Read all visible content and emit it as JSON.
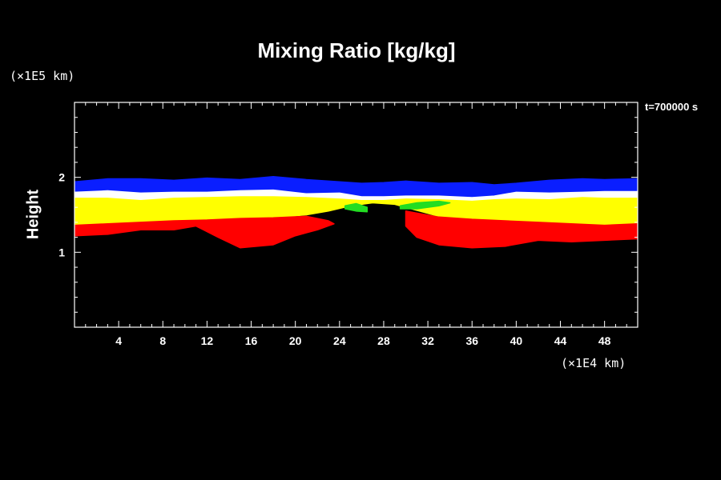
{
  "chart_data": {
    "type": "heatmap",
    "title": "Mixing Ratio [kg/kg]",
    "ylabel": "Height",
    "xlabel": "",
    "x_unit": "(×1E4 km)",
    "y_unit": "(×1E5 km)",
    "time_label": "t=700000 s",
    "xlim": [
      0,
      51
    ],
    "ylim": [
      0,
      3
    ],
    "x_ticks": [
      4,
      8,
      12,
      16,
      20,
      24,
      28,
      32,
      36,
      40,
      44,
      48
    ],
    "y_ticks": [
      1,
      2
    ],
    "colors": {
      "background": "#000000",
      "frame": "#ffffff",
      "blue": "#0a1eff",
      "white": "#ffffff",
      "yellow": "#ffff00",
      "red": "#ff0000",
      "green": "#22dd22",
      "cyan": "#00ffff"
    },
    "bands": [
      {
        "name": "",
        "color": "#0a1eff",
        "upper": [
          [
            0,
            1.94
          ],
          [
            3,
            1.98
          ],
          [
            6,
            1.98
          ],
          [
            9,
            1.96
          ],
          [
            12,
            1.99
          ],
          [
            15,
            1.97
          ],
          [
            18,
            2.01
          ],
          [
            21,
            1.97
          ],
          [
            24,
            1.94
          ],
          [
            26,
            1.92
          ],
          [
            28,
            1.93
          ],
          [
            30,
            1.95
          ],
          [
            33,
            1.92
          ],
          [
            36,
            1.93
          ],
          [
            38,
            1.9
          ],
          [
            40,
            1.92
          ],
          [
            43,
            1.96
          ],
          [
            46,
            1.98
          ],
          [
            48,
            1.97
          ],
          [
            51,
            1.98
          ]
        ],
        "lower": [
          [
            0,
            1.8
          ],
          [
            3,
            1.82
          ],
          [
            6,
            1.79
          ],
          [
            9,
            1.8
          ],
          [
            12,
            1.8
          ],
          [
            15,
            1.82
          ],
          [
            18,
            1.83
          ],
          [
            21,
            1.78
          ],
          [
            24,
            1.79
          ],
          [
            26,
            1.74
          ],
          [
            28,
            1.74
          ],
          [
            30,
            1.75
          ],
          [
            33,
            1.75
          ],
          [
            36,
            1.73
          ],
          [
            38,
            1.75
          ],
          [
            40,
            1.8
          ],
          [
            43,
            1.79
          ],
          [
            46,
            1.8
          ],
          [
            48,
            1.81
          ],
          [
            51,
            1.81
          ]
        ]
      },
      {
        "name": "",
        "color": "#ffffff",
        "upper": [
          [
            0,
            1.8
          ],
          [
            3,
            1.82
          ],
          [
            6,
            1.79
          ],
          [
            9,
            1.8
          ],
          [
            12,
            1.8
          ],
          [
            15,
            1.82
          ],
          [
            18,
            1.83
          ],
          [
            21,
            1.78
          ],
          [
            24,
            1.79
          ],
          [
            26,
            1.74
          ],
          [
            28,
            1.74
          ],
          [
            30,
            1.75
          ],
          [
            33,
            1.75
          ],
          [
            36,
            1.73
          ],
          [
            38,
            1.75
          ],
          [
            40,
            1.8
          ],
          [
            43,
            1.79
          ],
          [
            46,
            1.8
          ],
          [
            48,
            1.81
          ],
          [
            51,
            1.81
          ]
        ],
        "lower": [
          [
            0,
            1.72
          ],
          [
            3,
            1.72
          ],
          [
            6,
            1.69
          ],
          [
            9,
            1.72
          ],
          [
            12,
            1.73
          ],
          [
            15,
            1.74
          ],
          [
            18,
            1.74
          ],
          [
            21,
            1.73
          ],
          [
            24,
            1.71
          ],
          [
            26,
            1.69
          ],
          [
            28,
            1.69
          ],
          [
            30,
            1.71
          ],
          [
            33,
            1.7
          ],
          [
            36,
            1.68
          ],
          [
            38,
            1.7
          ],
          [
            40,
            1.71
          ],
          [
            43,
            1.7
          ],
          [
            46,
            1.73
          ],
          [
            48,
            1.72
          ],
          [
            51,
            1.72
          ]
        ]
      },
      {
        "name": "",
        "color": "#ffff00",
        "upper": [
          [
            0,
            1.72
          ],
          [
            3,
            1.72
          ],
          [
            6,
            1.69
          ],
          [
            9,
            1.72
          ],
          [
            12,
            1.73
          ],
          [
            15,
            1.74
          ],
          [
            18,
            1.74
          ],
          [
            21,
            1.73
          ],
          [
            24,
            1.71
          ],
          [
            26,
            1.69
          ],
          [
            28,
            1.69
          ],
          [
            30,
            1.71
          ],
          [
            33,
            1.7
          ],
          [
            36,
            1.68
          ],
          [
            38,
            1.7
          ],
          [
            40,
            1.71
          ],
          [
            43,
            1.7
          ],
          [
            46,
            1.73
          ],
          [
            48,
            1.72
          ],
          [
            51,
            1.72
          ]
        ],
        "lower": [
          [
            0,
            1.36
          ],
          [
            3,
            1.38
          ],
          [
            6,
            1.4
          ],
          [
            9,
            1.42
          ],
          [
            12,
            1.43
          ],
          [
            15,
            1.45
          ],
          [
            18,
            1.46
          ],
          [
            21,
            1.5
          ],
          [
            23,
            1.55
          ],
          [
            25,
            1.62
          ],
          [
            27,
            1.66
          ],
          [
            29,
            1.64
          ],
          [
            31,
            1.56
          ],
          [
            33,
            1.48
          ],
          [
            36,
            1.44
          ],
          [
            39,
            1.42
          ],
          [
            42,
            1.4
          ],
          [
            45,
            1.38
          ],
          [
            48,
            1.36
          ],
          [
            51,
            1.38
          ]
        ]
      },
      {
        "name": "",
        "color": "#ff0000",
        "upper": [
          [
            0,
            1.36
          ],
          [
            3,
            1.38
          ],
          [
            6,
            1.4
          ],
          [
            9,
            1.42
          ],
          [
            12,
            1.43
          ],
          [
            15,
            1.45
          ],
          [
            18,
            1.46
          ],
          [
            21,
            1.48
          ],
          [
            23,
            1.42
          ],
          [
            23.5,
            1.38
          ],
          [
            22,
            1.3
          ],
          [
            20,
            1.22
          ],
          [
            18,
            1.1
          ],
          [
            15,
            1.06
          ],
          [
            13,
            1.2
          ],
          [
            11,
            1.35
          ],
          [
            9,
            1.3
          ],
          [
            6,
            1.3
          ],
          [
            3,
            1.24
          ],
          [
            0,
            1.22
          ]
        ],
        "lower": [
          [
            0,
            1.22
          ],
          [
            0,
            1.22
          ]
        ]
      },
      {
        "name": "",
        "color": "#ff0000",
        "upper": [
          [
            30,
            1.55
          ],
          [
            33,
            1.47
          ],
          [
            36,
            1.44
          ],
          [
            39,
            1.42
          ],
          [
            42,
            1.4
          ],
          [
            45,
            1.38
          ],
          [
            48,
            1.36
          ],
          [
            51,
            1.38
          ],
          [
            51,
            1.18
          ],
          [
            48,
            1.16
          ],
          [
            45,
            1.14
          ],
          [
            42,
            1.16
          ],
          [
            39,
            1.08
          ],
          [
            36,
            1.06
          ],
          [
            33,
            1.1
          ],
          [
            31,
            1.2
          ],
          [
            30,
            1.35
          ]
        ],
        "lower": [
          [
            30,
            1.35
          ],
          [
            30,
            1.35
          ]
        ]
      },
      {
        "name": "",
        "color": "#22dd22",
        "upper": [
          [
            24.5,
            1.62
          ],
          [
            25.5,
            1.65
          ],
          [
            26.5,
            1.6
          ],
          [
            26.5,
            1.54
          ],
          [
            25.5,
            1.55
          ],
          [
            24.5,
            1.58
          ]
        ],
        "lower": [
          [
            24.5,
            1.58
          ],
          [
            24.5,
            1.58
          ]
        ]
      },
      {
        "name": "",
        "color": "#22dd22",
        "upper": [
          [
            29.5,
            1.62
          ],
          [
            31,
            1.66
          ],
          [
            33,
            1.68
          ],
          [
            34,
            1.66
          ],
          [
            33,
            1.62
          ],
          [
            31,
            1.58
          ],
          [
            29.5,
            1.58
          ]
        ],
        "lower": [
          [
            29.5,
            1.58
          ],
          [
            29.5,
            1.58
          ]
        ]
      }
    ]
  }
}
